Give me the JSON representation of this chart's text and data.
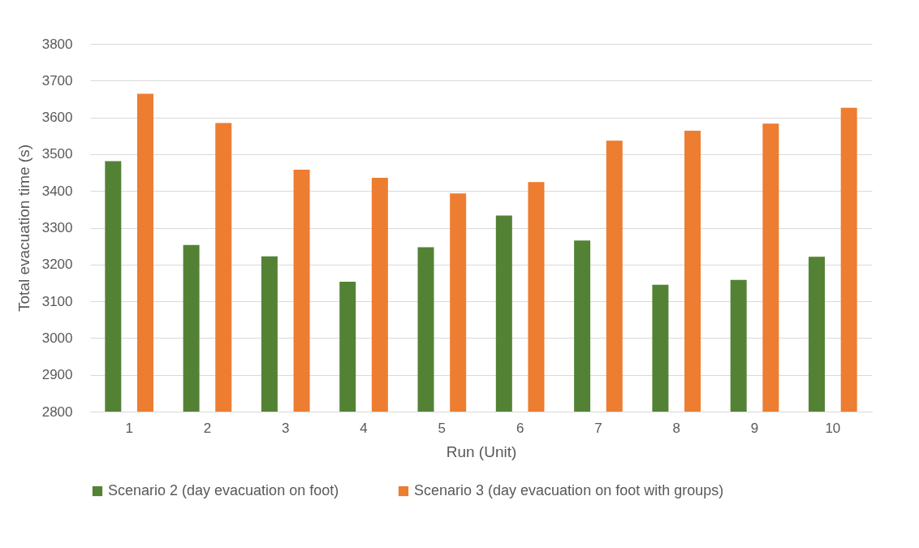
{
  "chart_data": {
    "type": "bar",
    "xlabel": "Run (Unit)",
    "ylabel": "Total evacuation time (s)",
    "categories": [
      "1",
      "2",
      "3",
      "4",
      "5",
      "6",
      "7",
      "8",
      "9",
      "10"
    ],
    "series": [
      {
        "name": "Scenario 2 (day evacuation on foot)",
        "color": "#548235",
        "values": [
          3481,
          3253,
          3222,
          3153,
          3247,
          3333,
          3265,
          3145,
          3158,
          3221
        ]
      },
      {
        "name": "Scenario 3 (day evacuation on foot with groups)",
        "color": "#ed7d31",
        "values": [
          3664,
          3585,
          3458,
          3436,
          3393,
          3424,
          3537,
          3564,
          3583,
          3626
        ]
      }
    ],
    "ylim": [
      2800,
      3800
    ],
    "yticks": [
      2800,
      2900,
      3000,
      3100,
      3200,
      3300,
      3400,
      3500,
      3600,
      3700,
      3800
    ],
    "grid": "y",
    "legend": "bottom"
  }
}
